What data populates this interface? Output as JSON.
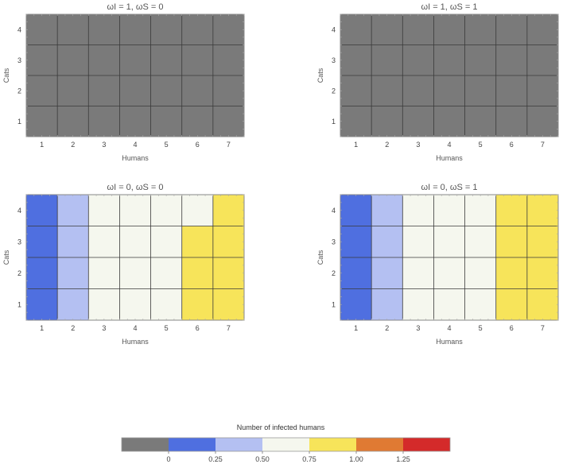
{
  "chart_data": [
    {
      "type": "heatmap",
      "title": "ωI = 1, ωS = 0",
      "xlabel": "Humans",
      "ylabel": "Cats",
      "x_ticks": [
        1,
        2,
        3,
        4,
        5,
        6,
        7
      ],
      "y_ticks": [
        1,
        2,
        3,
        4
      ],
      "values": [
        [
          -0.25,
          -0.25,
          -0.25,
          -0.25,
          -0.25,
          -0.25,
          -0.25
        ],
        [
          -0.25,
          -0.25,
          -0.25,
          -0.25,
          -0.25,
          -0.25,
          -0.25
        ],
        [
          -0.25,
          -0.25,
          -0.25,
          -0.25,
          -0.25,
          -0.25,
          -0.25
        ],
        [
          -0.25,
          -0.25,
          -0.25,
          -0.25,
          -0.25,
          -0.25,
          -0.25
        ]
      ]
    },
    {
      "type": "heatmap",
      "title": "ωI = 1, ωS = 1",
      "xlabel": "Humans",
      "ylabel": "Cats",
      "x_ticks": [
        1,
        2,
        3,
        4,
        5,
        6,
        7
      ],
      "y_ticks": [
        1,
        2,
        3,
        4
      ],
      "values": [
        [
          -0.25,
          -0.25,
          -0.25,
          -0.25,
          -0.25,
          -0.25,
          -0.25
        ],
        [
          -0.25,
          -0.25,
          -0.25,
          -0.25,
          -0.25,
          -0.25,
          -0.25
        ],
        [
          -0.25,
          -0.25,
          -0.25,
          -0.25,
          -0.25,
          -0.25,
          -0.25
        ],
        [
          -0.25,
          -0.25,
          -0.25,
          -0.25,
          -0.25,
          -0.25,
          -0.25
        ]
      ]
    },
    {
      "type": "heatmap",
      "title": "ωI = 0, ωS = 0",
      "xlabel": "Humans",
      "ylabel": "Cats",
      "x_ticks": [
        1,
        2,
        3,
        4,
        5,
        6,
        7
      ],
      "y_ticks": [
        1,
        2,
        3,
        4
      ],
      "values": [
        [
          0.12,
          0.38,
          0.52,
          0.58,
          0.68,
          0.78,
          0.86
        ],
        [
          0.12,
          0.38,
          0.52,
          0.58,
          0.68,
          0.78,
          0.86
        ],
        [
          0.12,
          0.38,
          0.52,
          0.58,
          0.64,
          0.76,
          0.84
        ],
        [
          0.12,
          0.38,
          0.52,
          0.58,
          0.64,
          0.74,
          0.82
        ]
      ]
    },
    {
      "type": "heatmap",
      "title": "ωI = 0, ωS = 1",
      "xlabel": "Humans",
      "ylabel": "Cats",
      "x_ticks": [
        1,
        2,
        3,
        4,
        5,
        6,
        7
      ],
      "y_ticks": [
        1,
        2,
        3,
        4
      ],
      "values": [
        [
          0.12,
          0.38,
          0.52,
          0.58,
          0.7,
          0.78,
          0.86
        ],
        [
          0.12,
          0.38,
          0.52,
          0.58,
          0.7,
          0.78,
          0.86
        ],
        [
          0.12,
          0.38,
          0.52,
          0.58,
          0.7,
          0.78,
          0.84
        ],
        [
          0.12,
          0.38,
          0.52,
          0.58,
          0.7,
          0.76,
          0.82
        ]
      ]
    }
  ],
  "colorbar": {
    "title": "Number of infected humans",
    "tick_labels": [
      "0",
      "0.25",
      "0.50",
      "0.75",
      "1.00",
      "1.25"
    ],
    "bins": [
      {
        "from": null,
        "to": 0,
        "color": "#7a7a7a"
      },
      {
        "from": 0,
        "to": 0.25,
        "color": "#4f6fe0"
      },
      {
        "from": 0.25,
        "to": 0.5,
        "color": "#b4c0f2"
      },
      {
        "from": 0.5,
        "to": 0.75,
        "color": "#f5f7ee"
      },
      {
        "from": 0.75,
        "to": 1.0,
        "color": "#f7e45a"
      },
      {
        "from": 1.0,
        "to": 1.25,
        "color": "#e07a33"
      },
      {
        "from": 1.25,
        "to": null,
        "color": "#d42a2a"
      }
    ]
  },
  "colors": {
    "grid_line": "#3a3a3a",
    "frame": "#888888",
    "missing": "#7a7a7a"
  }
}
